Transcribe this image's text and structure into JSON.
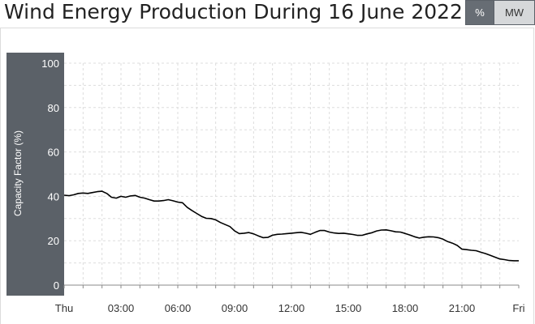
{
  "header": {
    "title": "Wind Energy Production During 16 June 2022",
    "unit_options": [
      "%",
      "MW"
    ],
    "selected_unit": "%"
  },
  "colors": {
    "axis_band": "#5b6168",
    "line": "#000000",
    "grid": "#dddddd",
    "active_button": "#676d74",
    "inactive_button": "#d6d8da"
  },
  "chart_data": {
    "type": "line",
    "title": "Wind Energy Production During 16 June 2022",
    "ylabel": "Capacity Factor (%)",
    "xlabel": "",
    "ylim": [
      0,
      100
    ],
    "xlim": [
      0,
      24
    ],
    "y_ticks": [
      "0",
      "20",
      "40",
      "60",
      "80",
      "100"
    ],
    "x_ticks": [
      {
        "at": 0,
        "label": "Thu"
      },
      {
        "at": 3,
        "label": "03:00"
      },
      {
        "at": 6,
        "label": "06:00"
      },
      {
        "at": 9,
        "label": "09:00"
      },
      {
        "at": 12,
        "label": "12:00"
      },
      {
        "at": 15,
        "label": "15:00"
      },
      {
        "at": 18,
        "label": "18:00"
      },
      {
        "at": 21,
        "label": "21:00"
      },
      {
        "at": 24,
        "label": "Fri"
      }
    ],
    "grid": true,
    "series": [
      {
        "x": [
          0,
          0.25,
          0.5,
          0.75,
          1,
          1.25,
          1.5,
          1.75,
          2,
          2.25,
          2.5,
          2.75,
          3,
          3.25,
          3.5,
          3.75,
          4,
          4.25,
          4.5,
          4.75,
          5,
          5.25,
          5.5,
          5.75,
          6,
          6.25,
          6.5,
          6.75,
          7,
          7.25,
          7.5,
          7.75,
          8,
          8.25,
          8.5,
          8.75,
          9,
          9.25,
          9.5,
          9.75,
          10,
          10.25,
          10.5,
          10.75,
          11,
          11.25,
          11.5,
          11.75,
          12,
          12.25,
          12.5,
          12.75,
          13,
          13.25,
          13.5,
          13.75,
          14,
          14.25,
          14.5,
          14.75,
          15,
          15.25,
          15.5,
          15.75,
          16,
          16.25,
          16.5,
          16.75,
          17,
          17.25,
          17.5,
          17.75,
          18,
          18.25,
          18.5,
          18.75,
          19,
          19.25,
          19.5,
          19.75,
          20,
          20.25,
          20.5,
          20.75,
          21,
          21.25,
          21.5,
          21.75,
          22,
          22.25,
          22.5,
          22.75,
          23,
          23.25,
          23.5,
          23.75,
          24
        ],
        "values": [
          40.5,
          40.3,
          40.7,
          41.3,
          41.5,
          41.3,
          41.7,
          42.1,
          42.3,
          41.3,
          39.6,
          39.2,
          40.0,
          39.6,
          40.2,
          40.4,
          39.6,
          39.2,
          38.5,
          37.9,
          37.9,
          38.1,
          38.5,
          38.0,
          37.4,
          37.1,
          35.0,
          33.6,
          32.3,
          31.0,
          30.1,
          30.0,
          29.4,
          28.2,
          27.3,
          26.4,
          24.4,
          23.2,
          23.4,
          23.7,
          23.1,
          22.2,
          21.4,
          21.5,
          22.5,
          22.9,
          23.0,
          23.2,
          23.4,
          23.6,
          23.8,
          23.4,
          22.9,
          23.8,
          24.6,
          24.6,
          23.9,
          23.5,
          23.3,
          23.4,
          23.1,
          22.8,
          22.4,
          22.5,
          23.1,
          23.6,
          24.4,
          24.8,
          24.9,
          24.5,
          24.0,
          23.9,
          23.3,
          22.6,
          21.8,
          21.2,
          21.6,
          21.8,
          21.7,
          21.4,
          20.7,
          19.6,
          18.9,
          17.9,
          16.2,
          16.0,
          15.7,
          15.5,
          14.8,
          14.2,
          13.4,
          12.6,
          11.8,
          11.5,
          11.1,
          11.0,
          11.0
        ]
      }
    ]
  }
}
